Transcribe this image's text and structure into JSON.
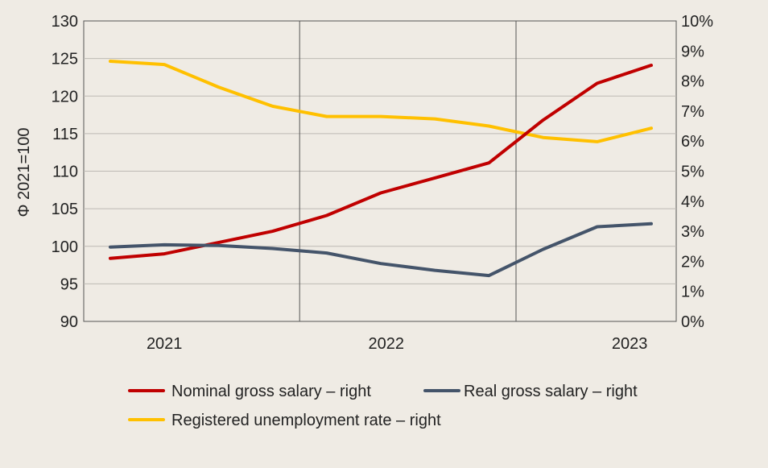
{
  "chart_data": {
    "type": "line",
    "ylabel_left": "Φ 2021=100",
    "ylim_left": [
      90,
      130
    ],
    "yticks_left": [
      "90",
      "95",
      "100",
      "105",
      "110",
      "115",
      "120",
      "125",
      "130"
    ],
    "ylim_right": [
      0,
      10
    ],
    "yticks_right": [
      "0%",
      "1%",
      "2%",
      "3%",
      "4%",
      "5%",
      "6%",
      "7%",
      "8%",
      "9%",
      "10%"
    ],
    "x_groups": [
      "2021",
      "2022",
      "2023"
    ],
    "x": [
      1,
      2,
      3,
      4,
      5,
      6,
      7,
      8,
      9,
      10,
      11
    ],
    "grid": "vertical group separators",
    "legend_position": "bottom",
    "series": [
      {
        "name": "Nominal gross salary – right",
        "color": "#c00000",
        "axis": "left",
        "values": [
          98.4,
          99.0,
          100.5,
          102.0,
          104.1,
          107.1,
          109.1,
          111.1,
          116.8,
          121.7,
          124.1
        ]
      },
      {
        "name": "Real gross salary – right",
        "color": "#44546a",
        "axis": "left",
        "values": [
          99.9,
          100.2,
          100.1,
          99.7,
          99.1,
          97.7,
          96.8,
          96.1,
          99.6,
          102.6,
          103.0
        ]
      },
      {
        "name": "Registered unemployment rate – right",
        "color": "#ffc000",
        "axis": "right",
        "values": [
          8.66,
          8.55,
          7.8,
          7.16,
          6.82,
          6.82,
          6.74,
          6.5,
          6.12,
          5.98,
          6.43
        ]
      }
    ]
  }
}
